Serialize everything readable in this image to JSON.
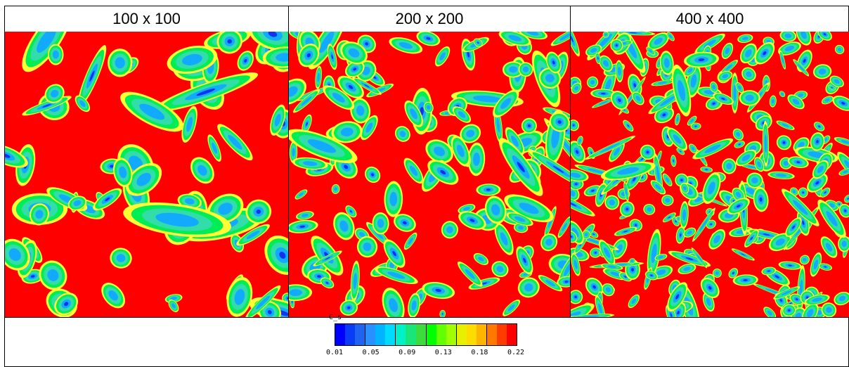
{
  "panels": [
    {
      "label": "100 x 100"
    },
    {
      "label": "200 x 200"
    },
    {
      "label": "400 x 400"
    }
  ],
  "colorbar": {
    "variable": "C_s",
    "ticks": [
      "0.01",
      "0.05",
      "0.09",
      "0.13",
      "0.18",
      "0.22"
    ],
    "colors": [
      "#0000ff",
      "#0a3cf5",
      "#1e64f0",
      "#2890ff",
      "#00b4ff",
      "#00dcff",
      "#00f0c8",
      "#19e678",
      "#3cdc3c",
      "#00ff00",
      "#64ff00",
      "#a0ff00",
      "#e6f000",
      "#ffdc00",
      "#ffb400",
      "#ff7800",
      "#ff3c00",
      "#ff0000"
    ],
    "background_color": "#ff0000",
    "blob_colors": {
      "outer": "#ffff33",
      "mid": "#00ee55",
      "inner": "#33ddaa",
      "core": "#11aaff",
      "deep": "#1133ee"
    }
  }
}
